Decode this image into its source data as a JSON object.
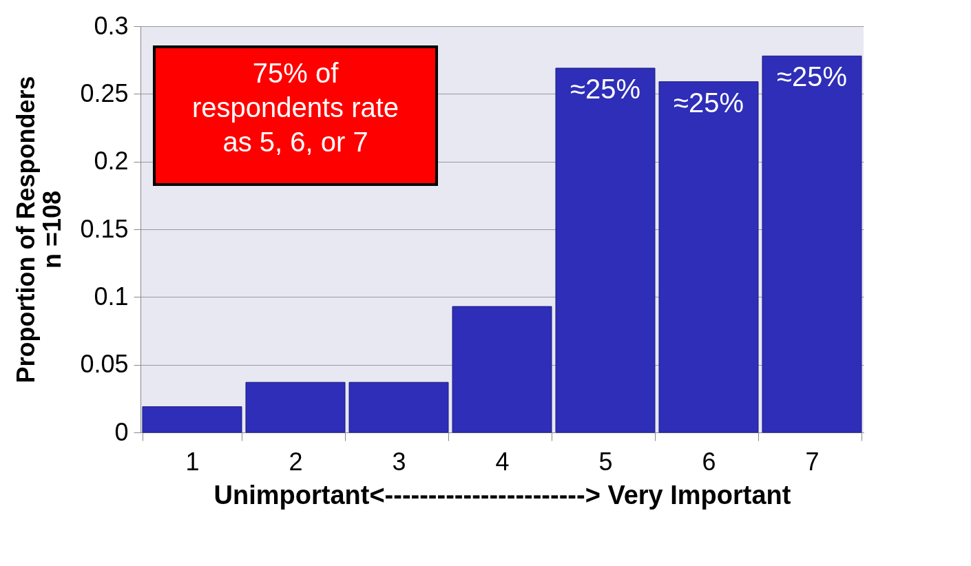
{
  "chart_data": {
    "type": "bar",
    "categories": [
      "1",
      "2",
      "3",
      "4",
      "5",
      "6",
      "7"
    ],
    "values": [
      0.019,
      0.037,
      0.037,
      0.093,
      0.269,
      0.259,
      0.278
    ],
    "color": "#2e2eb8",
    "ylim": [
      0,
      0.3
    ],
    "yticks": [
      0,
      0.05,
      0.1,
      0.15,
      0.2,
      0.25,
      0.3
    ],
    "grid": "y",
    "ylabel": "Proportion of Responders\nn =108",
    "xlabel": "Unimportant<-----------------------> Very Important",
    "annotations": [
      "75% of\nrespondents rate\nas 5, 6, or 7",
      {
        "text": "≈25%",
        "x": "5",
        "y": 0.269
      },
      {
        "text": "≈25%",
        "x": "6",
        "y": 0.259
      },
      {
        "text": "≈25%",
        "x": "7",
        "y": 0.278
      }
    ]
  }
}
